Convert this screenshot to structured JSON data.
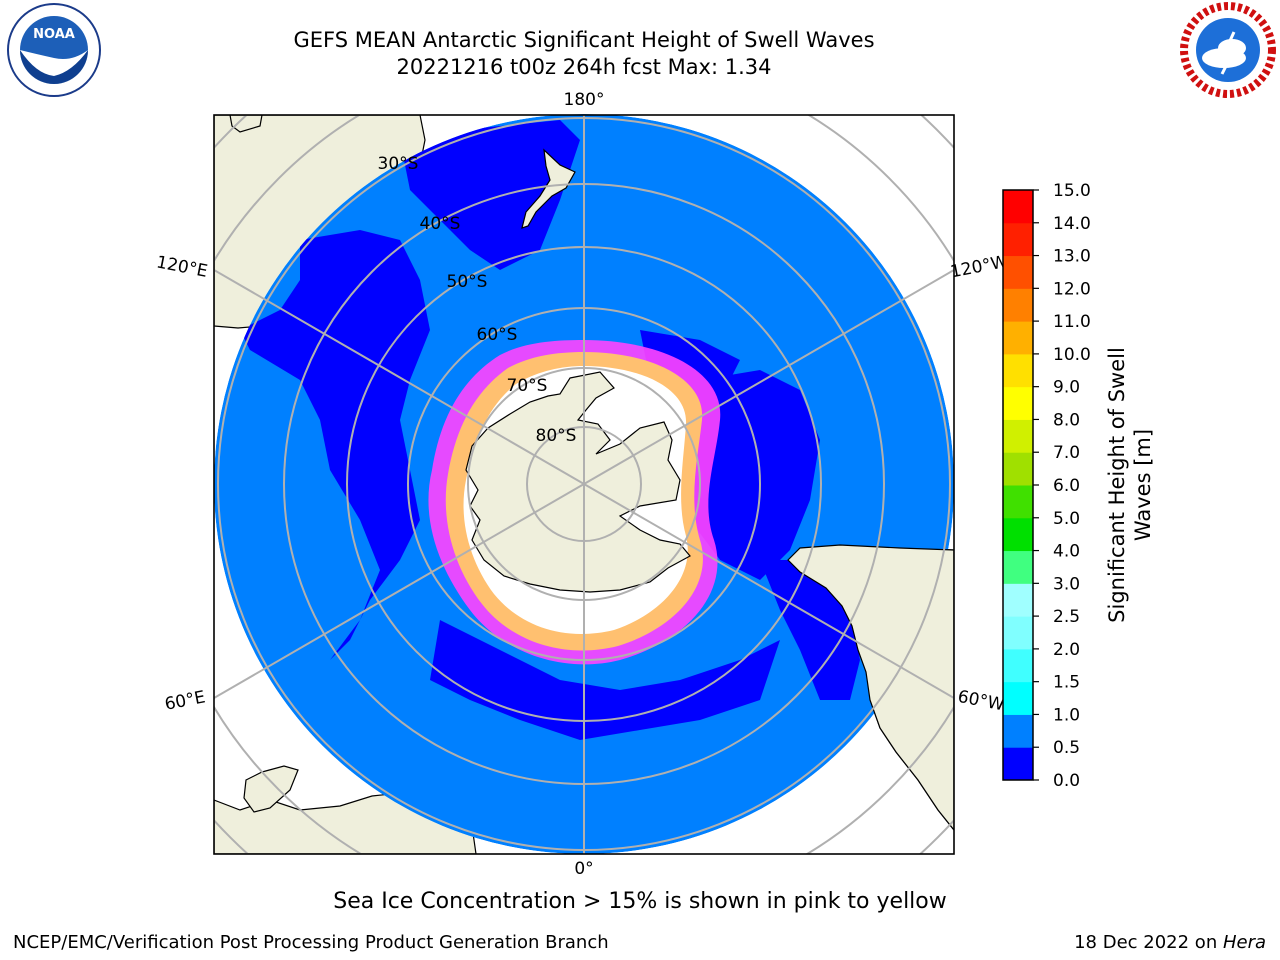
{
  "title": {
    "line1": "GEFS MEAN Antarctic Significant Height of Swell Waves",
    "line2": "20221216 t00z 264h fcst   Max: 1.34"
  },
  "map": {
    "projection": "south-polar-stereographic",
    "meridian_labels": [
      "180°",
      "120°E",
      "120°W",
      "60°E",
      "60°W",
      "0°"
    ],
    "parallel_labels": [
      "30°S",
      "40°S",
      "50°S",
      "60°S",
      "70°S",
      "80°S"
    ],
    "colors": {
      "ocean": "#0080ff",
      "low_band": "#0000ff",
      "land": "#efefdc",
      "sea_ice_outer": "#ff44ff",
      "sea_ice_inner": "#ffc070",
      "grid": "#b0b0b0"
    }
  },
  "colorbar": {
    "label": "Significant Height of Swell Waves [m]",
    "ticks": [
      "0.0",
      "0.5",
      "1.0",
      "1.5",
      "2.0",
      "2.5",
      "3.0",
      "4.0",
      "5.0",
      "6.0",
      "7.0",
      "8.0",
      "9.0",
      "10.0",
      "11.0",
      "12.0",
      "13.0",
      "14.0",
      "15.0"
    ],
    "colors": [
      "#0000ff",
      "#0080ff",
      "#00ffff",
      "#40ffff",
      "#80ffff",
      "#a0ffff",
      "#40ff80",
      "#00e000",
      "#40e000",
      "#a0e000",
      "#d0f000",
      "#ffff00",
      "#ffe000",
      "#ffb000",
      "#ff8000",
      "#ff5000",
      "#ff2000",
      "#ff0000"
    ]
  },
  "note": "Sea Ice Concentration > 15% is shown in pink to yellow",
  "footer": {
    "left": "NCEP/EMC/Verification Post Processing Product Generation Branch",
    "right_prefix": "18 Dec 2022 on ",
    "right_machine": "Hera"
  }
}
